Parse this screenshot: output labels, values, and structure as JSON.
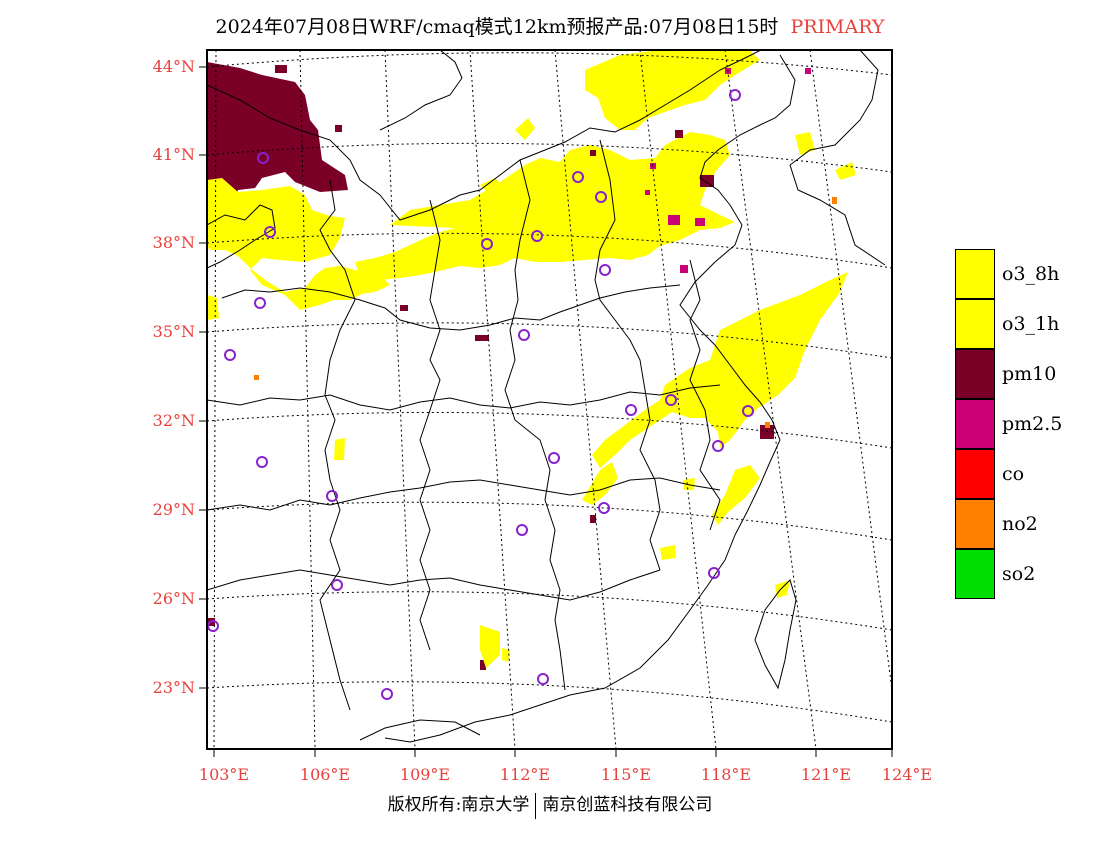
{
  "title": {
    "main": "2024年07月08日WRF/cmaq模式12km预报产品:07月08日15时",
    "tag": "PRIMARY"
  },
  "latitude_labels": [
    "44°N",
    "41°N",
    "38°N",
    "35°N",
    "32°N",
    "29°N",
    "26°N",
    "23°N"
  ],
  "longitude_labels": [
    "103°E",
    "106°E",
    "109°E",
    "112°E",
    "115°E",
    "118°E",
    "121°E",
    "124°E"
  ],
  "legend": [
    {
      "label": "o3_8h",
      "color": "#ffff00"
    },
    {
      "label": "o3_1h",
      "color": "#ffff00"
    },
    {
      "label": "pm10",
      "color": "#7a0028"
    },
    {
      "label": "pm2.5",
      "color": "#cc0077"
    },
    {
      "label": "co",
      "color": "#ff0000"
    },
    {
      "label": "no2",
      "color": "#ff8000"
    },
    {
      "label": "so2",
      "color": "#00dd00"
    }
  ],
  "copyright": {
    "left": "版权所有:南京大学",
    "right": "南京创蓝科技有限公司"
  },
  "colors": {
    "label_red": "#e8413c",
    "station_marker": "#8822cc"
  }
}
